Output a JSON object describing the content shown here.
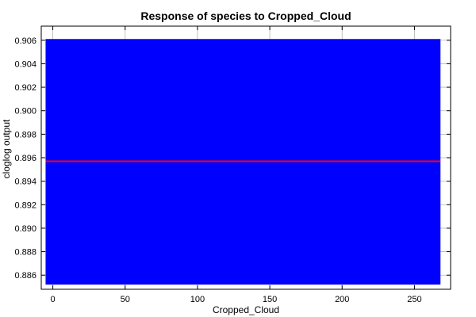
{
  "chart_data": {
    "type": "area",
    "title": "Response of species to Cropped_Cloud",
    "xlabel": "Cropped_Cloud",
    "ylabel": "cloglog output",
    "xlim": [
      -8,
      275
    ],
    "ylim": [
      0.8848,
      0.9072
    ],
    "x_ticks": [
      0,
      50,
      100,
      150,
      200,
      250
    ],
    "y_ticks": [
      0.886,
      0.888,
      0.89,
      0.892,
      0.894,
      0.896,
      0.898,
      0.9,
      0.902,
      0.904,
      0.906
    ],
    "y_tick_labels": [
      "0.886",
      "0.888",
      "0.890",
      "0.892",
      "0.894",
      "0.896",
      "0.898",
      "0.900",
      "0.902",
      "0.904",
      "0.906"
    ],
    "grid": true,
    "series": [
      {
        "kind": "band",
        "x": [
          -5,
          268
        ],
        "lower": [
          0.8852,
          0.8852
        ],
        "upper": [
          0.9061,
          0.9061
        ],
        "color": "#0000ff"
      },
      {
        "kind": "line",
        "x": [
          -5,
          268
        ],
        "values": [
          0.8957,
          0.8957
        ],
        "color": "#ff0000"
      }
    ]
  }
}
